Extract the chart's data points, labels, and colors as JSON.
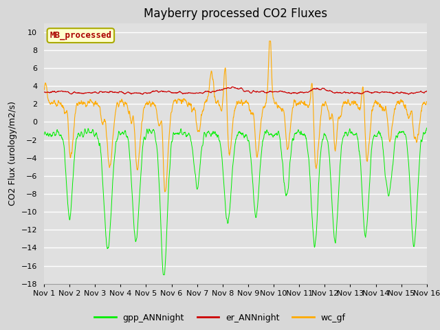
{
  "title": "Mayberry processed CO2 Fluxes",
  "ylabel": "CO2 Flux (urology/m2/s)",
  "ylim": [
    -18,
    11
  ],
  "yticks": [
    -18,
    -16,
    -14,
    -12,
    -10,
    -8,
    -6,
    -4,
    -2,
    0,
    2,
    4,
    6,
    8,
    10
  ],
  "xlim": [
    0,
    15
  ],
  "xtick_labels": [
    "Nov 1",
    "Nov 2",
    "Nov 3",
    "Nov 4",
    "Nov 5",
    "Nov 6",
    "Nov 7",
    "Nov 8",
    "Nov 9",
    "Nov 10",
    "Nov 11",
    "Nov 12",
    "Nov 13",
    "Nov 14",
    "Nov 15",
    "Nov 16"
  ],
  "xtick_positions": [
    0,
    1,
    2,
    3,
    4,
    5,
    6,
    7,
    8,
    9,
    10,
    11,
    12,
    13,
    14,
    15
  ],
  "fig_bg_color": "#d8d8d8",
  "plot_bg_color": "#e0e0e0",
  "grid_color": "#ffffff",
  "line_green": "#00ee00",
  "line_red": "#cc0000",
  "line_orange": "#ffaa00",
  "legend_label_green": "gpp_ANNnight",
  "legend_label_red": "er_ANNnight",
  "legend_label_orange": "wc_gf",
  "inset_label": "MB_processed",
  "inset_bg": "#ffffcc",
  "inset_border": "#aaaa00",
  "inset_text_color": "#aa0000",
  "title_fontsize": 12,
  "axis_fontsize": 9,
  "tick_fontsize": 8,
  "legend_fontsize": 9,
  "n_points": 2000
}
